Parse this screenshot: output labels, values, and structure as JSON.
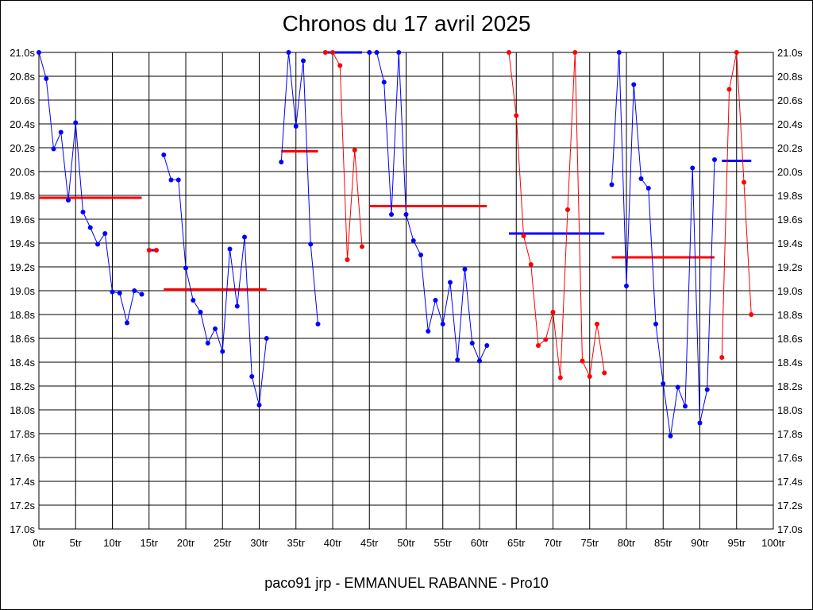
{
  "chart_data": {
    "type": "line",
    "title": "Chronos du 17 avril 2025",
    "footer": "paco91 jrp - EMMANUEL RABANNE - Pro10",
    "xlabel": "",
    "ylabel": "",
    "xlim": [
      0,
      100
    ],
    "ylim": [
      17.0,
      21.0
    ],
    "x_tick_labels": [
      "0tr",
      "5tr",
      "10tr",
      "15tr",
      "20tr",
      "25tr",
      "30tr",
      "35tr",
      "40tr",
      "45tr",
      "50tr",
      "55tr",
      "60tr",
      "65tr",
      "70tr",
      "75tr",
      "80tr",
      "85tr",
      "90tr",
      "95tr",
      "100tr"
    ],
    "y_tick_labels": [
      "17.0s",
      "17.2s",
      "17.4s",
      "17.6s",
      "17.8s",
      "18.0s",
      "18.2s",
      "18.4s",
      "18.6s",
      "18.8s",
      "19.0s",
      "19.2s",
      "19.4s",
      "19.6s",
      "19.8s",
      "20.0s",
      "20.2s",
      "20.4s",
      "20.6s",
      "20.8s",
      "21.0s"
    ],
    "grid": true,
    "colors": {
      "blue": "#0000ff",
      "red": "#ff0000"
    },
    "segments": [
      {
        "color": "blue",
        "x": [
          0,
          1,
          2,
          3,
          4,
          5,
          6,
          7,
          8,
          9,
          10,
          11,
          12,
          13,
          14
        ],
        "y": [
          21.0,
          20.78,
          20.19,
          20.33,
          19.76,
          20.41,
          19.66,
          19.53,
          19.39,
          19.48,
          18.99,
          18.98,
          18.73,
          19.0,
          18.97
        ]
      },
      {
        "color": "red",
        "x": [
          15,
          16
        ],
        "y": [
          19.34,
          19.34
        ]
      },
      {
        "color": "blue",
        "x": [
          17,
          18,
          19,
          20,
          21,
          22,
          23,
          24,
          25,
          26,
          27,
          28,
          29,
          30,
          31
        ],
        "y": [
          20.14,
          19.93,
          19.93,
          19.19,
          18.92,
          18.82,
          18.56,
          18.68,
          18.49,
          19.35,
          18.87,
          19.45,
          18.28,
          18.04,
          18.6
        ]
      },
      {
        "color": "blue",
        "x": [
          33,
          34,
          35,
          36,
          37,
          38
        ],
        "y": [
          20.08,
          21.0,
          20.38,
          20.93,
          19.39,
          18.72
        ]
      },
      {
        "color": "red",
        "x": [
          39,
          40,
          41,
          42,
          43,
          44
        ],
        "y": [
          21.0,
          21.0,
          20.89,
          19.26,
          20.18,
          19.37
        ]
      },
      {
        "color": "blue",
        "x": [
          45,
          46,
          47,
          48,
          49,
          50,
          51,
          52,
          53,
          54,
          55,
          56,
          57,
          58,
          59,
          60,
          61
        ],
        "y": [
          21.0,
          21.0,
          20.75,
          19.64,
          21.0,
          19.64,
          19.42,
          19.3,
          18.66,
          18.92,
          18.72,
          19.07,
          18.42,
          19.18,
          18.56,
          18.41,
          18.54
        ]
      },
      {
        "color": "red",
        "x": [
          64,
          65,
          66,
          67,
          68,
          69,
          70,
          71,
          72,
          73,
          74,
          75,
          76,
          77
        ],
        "y": [
          21.0,
          20.47,
          19.46,
          19.22,
          18.54,
          18.59,
          18.82,
          18.27,
          19.68,
          21.0,
          18.41,
          18.28,
          18.72,
          18.31
        ]
      },
      {
        "color": "blue",
        "x": [
          78,
          79,
          80,
          81,
          82,
          83,
          84,
          85,
          86,
          87,
          88,
          89,
          90,
          91,
          92
        ],
        "y": [
          19.89,
          21.0,
          19.04,
          20.73,
          19.94,
          19.86,
          18.72,
          18.22,
          17.78,
          18.19,
          18.03,
          20.03,
          17.89,
          18.17,
          20.1
        ]
      },
      {
        "color": "red",
        "x": [
          93,
          94,
          95,
          96,
          97
        ],
        "y": [
          18.44,
          20.69,
          21.0,
          19.91,
          18.8
        ]
      }
    ],
    "averages": [
      {
        "color": "red",
        "x": [
          0,
          14
        ],
        "y": 19.78
      },
      {
        "color": "blue",
        "x": [
          15,
          16
        ],
        "y": 19.34
      },
      {
        "color": "red",
        "x": [
          17,
          31
        ],
        "y": 19.01
      },
      {
        "color": "red",
        "x": [
          33,
          38
        ],
        "y": 20.17
      },
      {
        "color": "blue",
        "x": [
          39,
          44
        ],
        "y": 21.0
      },
      {
        "color": "red",
        "x": [
          45,
          61
        ],
        "y": 19.71
      },
      {
        "color": "blue",
        "x": [
          64,
          77
        ],
        "y": 19.48
      },
      {
        "color": "red",
        "x": [
          78,
          92
        ],
        "y": 19.28
      },
      {
        "color": "blue",
        "x": [
          93,
          97
        ],
        "y": 20.09
      }
    ]
  }
}
